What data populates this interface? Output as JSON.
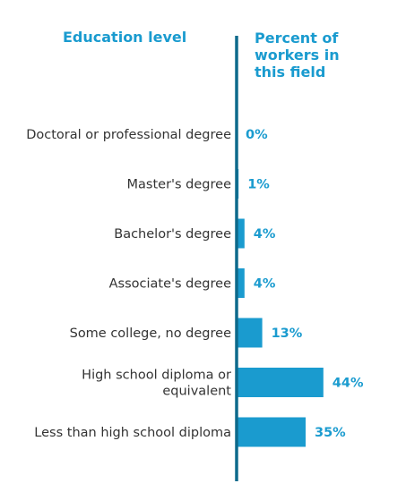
{
  "chart_data": {
    "type": "bar",
    "orientation": "horizontal",
    "category_header": "Education level",
    "value_header": "Percent of workers in this field",
    "value_header_lines": [
      "Percent of",
      "workers in",
      "this field"
    ],
    "categories": [
      [
        "Doctoral or professional degree"
      ],
      [
        "Master's degree"
      ],
      [
        "Bachelor's degree"
      ],
      [
        "Associate's degree"
      ],
      [
        "Some college, no degree"
      ],
      [
        "High school diploma or",
        "equivalent"
      ],
      [
        "Less than high school diploma"
      ]
    ],
    "values": [
      0,
      1,
      4,
      4,
      13,
      44,
      35
    ],
    "value_labels": [
      "0%",
      "1%",
      "4%",
      "4%",
      "13%",
      "44%",
      "35%"
    ],
    "colors": {
      "bar": "#1a9bcf",
      "axis": "#0e6a8c",
      "header": "#1a9bcf",
      "label": "#333333"
    }
  }
}
